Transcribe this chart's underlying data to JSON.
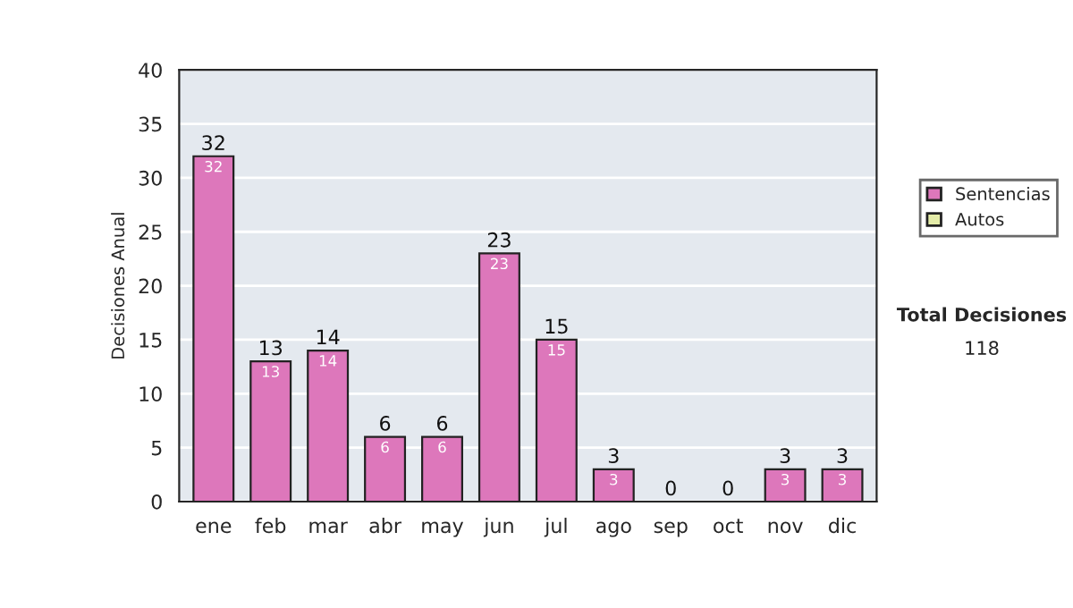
{
  "chart_data": {
    "type": "bar",
    "ylabel": "Decisiones Anual",
    "categories": [
      "ene",
      "feb",
      "mar",
      "abr",
      "may",
      "jun",
      "jul",
      "ago",
      "sep",
      "oct",
      "nov",
      "dic"
    ],
    "series": [
      {
        "name": "Sentencias",
        "color": "#dd77bb",
        "values": [
          32,
          13,
          14,
          6,
          6,
          23,
          15,
          3,
          0,
          0,
          3,
          3
        ],
        "value_labels": [
          "32",
          "13",
          "14",
          "6",
          "6",
          "23",
          "15",
          "3",
          null,
          null,
          "3",
          "3"
        ]
      },
      {
        "name": "Autos",
        "color": "#e4eca8",
        "values": [
          0,
          0,
          0,
          0,
          0,
          0,
          0,
          0,
          0,
          0,
          0,
          0
        ]
      }
    ],
    "stacked": true,
    "totals": [
      "32",
      "13",
      "14",
      "6",
      "6",
      "23",
      "15",
      "3",
      "0",
      "0",
      "3",
      "3"
    ],
    "ylim": [
      0,
      40
    ],
    "yticks": [
      0,
      5,
      10,
      15,
      20,
      25,
      30,
      35,
      40
    ],
    "grid": "y",
    "legend": "right",
    "annotations": [
      "Total Decisiones",
      "118"
    ]
  }
}
